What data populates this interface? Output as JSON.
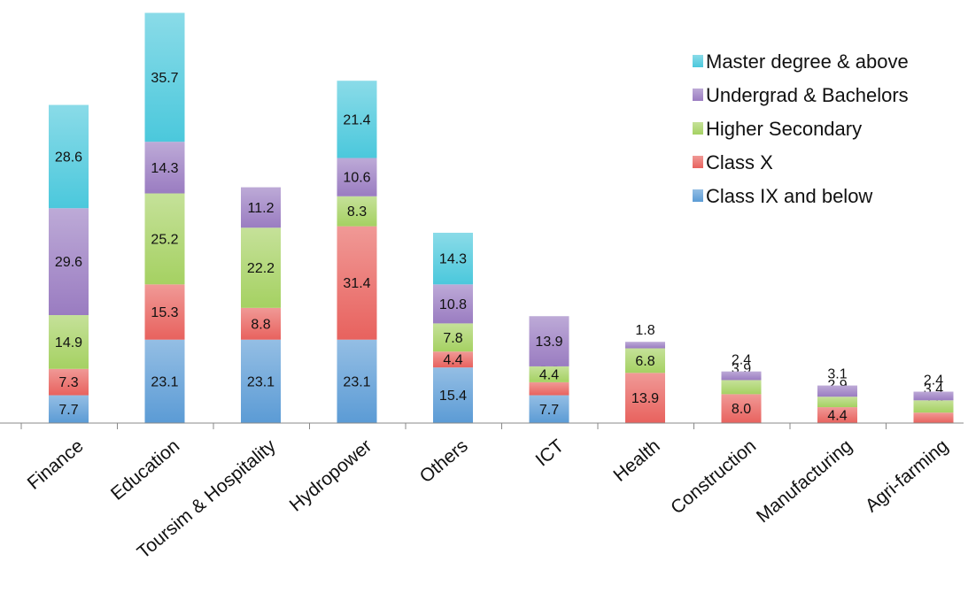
{
  "chart_data": {
    "type": "bar",
    "stacked": true,
    "categories": [
      "Finance",
      "Education",
      "Toursim & Hospitality",
      "Hydropower",
      "Others",
      "ICT",
      "Health",
      "Construction",
      "Manufacturing",
      "Agri-farming"
    ],
    "series": [
      {
        "name": "Class IX and below",
        "color": "#5b9bd5",
        "values": [
          7.7,
          23.1,
          23.1,
          23.1,
          15.4,
          7.7,
          0,
          0,
          0,
          0
        ],
        "labels": [
          "7.7",
          "23.1",
          "23.1",
          "23.1",
          "15.4",
          "7.7",
          "",
          "",
          "",
          ""
        ]
      },
      {
        "name": "Class X",
        "color": "#e8625e",
        "values": [
          7.3,
          15.3,
          8.8,
          31.4,
          4.4,
          3.6,
          13.9,
          8.0,
          4.4,
          2.9
        ],
        "labels": [
          "7.3",
          "15.3",
          "8.8",
          "31.4",
          "4.4",
          "3.6",
          "13.9",
          "8.0",
          "4.4",
          "2.9"
        ]
      },
      {
        "name": "Higher Secondary",
        "color": "#a5d162",
        "values": [
          14.9,
          25.2,
          22.2,
          8.3,
          7.8,
          4.4,
          6.8,
          3.9,
          2.9,
          3.4
        ],
        "labels": [
          "14.9",
          "25.2",
          "22.2",
          "8.3",
          "7.8",
          "4.4",
          "6.8",
          "3.9",
          "2.9",
          "3.4"
        ]
      },
      {
        "name": "Undergrad & Bachelors",
        "color": "#9a7cc1",
        "values": [
          29.6,
          14.3,
          11.2,
          10.6,
          10.8,
          13.9,
          1.8,
          2.4,
          3.1,
          2.4
        ],
        "labels": [
          "29.6",
          "14.3",
          "11.2",
          "10.6",
          "10.8",
          "13.9",
          "1.8",
          "2.4",
          "3.1",
          "2.4"
        ]
      },
      {
        "name": "Master degree & above",
        "color": "#4bc8dc",
        "values": [
          28.6,
          35.7,
          0,
          21.4,
          14.3,
          0,
          0,
          0,
          0,
          0
        ],
        "labels": [
          "28.6",
          "35.7",
          "",
          "21.4",
          "14.3",
          "",
          "",
          "",
          "",
          ""
        ]
      }
    ],
    "legend_position": "top-right",
    "grid": false
  }
}
